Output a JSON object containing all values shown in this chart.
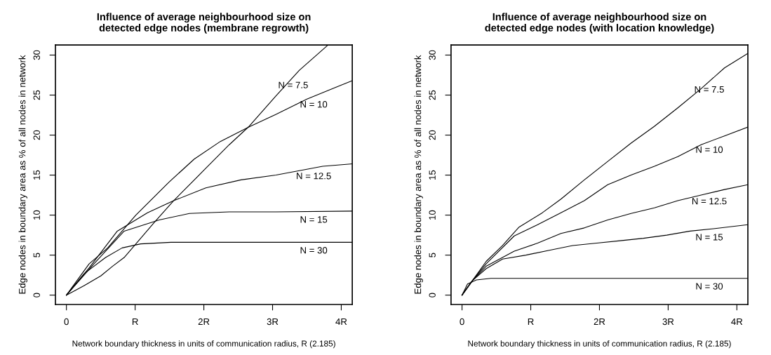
{
  "chart_data": [
    {
      "type": "line",
      "title": "Influence of average neighbourhood size on\ndetected edge nodes (membrane regrowth)",
      "xlabel": "Network boundary thickness in units of communication radius, R (2.185)",
      "ylabel": "Edge nodes in boundary area as % of all nodes in network",
      "xlim": [
        -0.16,
        4.16
      ],
      "ylim": [
        -1.17,
        31.26
      ],
      "xticks": [
        {
          "value": 0,
          "label": "0"
        },
        {
          "value": 1,
          "label": "R"
        },
        {
          "value": 2,
          "label": "2R"
        },
        {
          "value": 3,
          "label": "3R"
        },
        {
          "value": 4,
          "label": "4R"
        }
      ],
      "yticks": [
        0,
        5,
        10,
        15,
        20,
        25,
        30
      ],
      "grid": false,
      "legend": false,
      "marker": "none",
      "line_style": "solid",
      "series": [
        {
          "name": "N = 7.5",
          "color": "#000000",
          "x": [
            0,
            0.26,
            0.5,
            0.67,
            0.84,
            1.28,
            1.56,
            2.0,
            2.37,
            2.66,
            3.05,
            3.39,
            3.8
          ],
          "values": [
            0,
            1.2,
            2.4,
            3.6,
            4.7,
            9.1,
            11.8,
            15.6,
            18.8,
            21.1,
            24.9,
            28.1,
            31.2
          ]
        },
        {
          "name": "N = 10",
          "color": "#000000",
          "x": [
            0,
            0.33,
            0.6,
            1.01,
            1.49,
            1.86,
            2.24,
            2.65,
            3.05,
            3.5,
            3.9,
            4.16
          ],
          "values": [
            0,
            3.9,
            5.9,
            10.0,
            14.1,
            17.0,
            19.2,
            21.0,
            22.6,
            24.5,
            25.9,
            26.8
          ]
        },
        {
          "name": "N = 12.5",
          "color": "#000000",
          "x": [
            0,
            0.33,
            0.74,
            1.18,
            1.56,
            2.03,
            2.54,
            3.05,
            3.73,
            4.16
          ],
          "values": [
            0,
            3.4,
            8.0,
            10.3,
            11.8,
            13.4,
            14.4,
            15.0,
            16.1,
            16.4
          ]
        },
        {
          "name": "N = 15",
          "color": "#000000",
          "x": [
            0,
            0.4,
            0.84,
            1.35,
            1.79,
            2.37,
            3.05,
            4.16
          ],
          "values": [
            0,
            3.9,
            8.0,
            9.4,
            10.2,
            10.4,
            10.4,
            10.5
          ]
        },
        {
          "name": "N = 30",
          "color": "#000000",
          "x": [
            0,
            0.26,
            0.57,
            0.81,
            1.08,
            1.52,
            2.37,
            4.16
          ],
          "values": [
            0,
            2.7,
            4.7,
            5.9,
            6.4,
            6.6,
            6.6,
            6.6
          ]
        }
      ]
    },
    {
      "type": "line",
      "title": "Influence of average neighbourhood size on\ndetected edge nodes (with location knowledge)",
      "xlabel": "Network boundary thickness in units of communication radius, R (2.185)",
      "ylabel": "Edge nodes in boundary area as % of all nodes in network",
      "xlim": [
        -0.16,
        4.16
      ],
      "ylim": [
        -1.17,
        31.26
      ],
      "xticks": [
        {
          "value": 0,
          "label": "0"
        },
        {
          "value": 1,
          "label": "R"
        },
        {
          "value": 2,
          "label": "2R"
        },
        {
          "value": 3,
          "label": "3R"
        },
        {
          "value": 4,
          "label": "4R"
        }
      ],
      "yticks": [
        0,
        5,
        10,
        15,
        20,
        25,
        30
      ],
      "grid": false,
      "legend": false,
      "marker": "none",
      "line_style": "solid",
      "series": [
        {
          "name": "N = 7.5",
          "color": "#000000",
          "x": [
            0,
            0.15,
            0.35,
            0.59,
            0.83,
            1.17,
            1.44,
            1.78,
            2.12,
            2.46,
            2.8,
            3.14,
            3.48,
            3.82,
            4.157
          ],
          "values": [
            0,
            1.8,
            4.2,
            6.2,
            8.5,
            10.3,
            12.0,
            14.4,
            16.7,
            19.0,
            21.1,
            23.4,
            25.8,
            28.4,
            30.2
          ]
        },
        {
          "name": "N = 10",
          "color": "#000000",
          "x": [
            0,
            0.15,
            0.35,
            0.76,
            1.1,
            1.44,
            1.78,
            2.12,
            2.46,
            2.8,
            3.14,
            3.48,
            3.82,
            4.157
          ],
          "values": [
            0,
            1.8,
            3.9,
            7.4,
            8.8,
            10.3,
            11.8,
            13.8,
            15.0,
            16.1,
            17.3,
            18.8,
            19.9,
            21.0
          ]
        },
        {
          "name": "N = 12.5",
          "color": "#000000",
          "x": [
            0,
            0.15,
            0.35,
            0.76,
            1.1,
            1.44,
            1.78,
            2.12,
            2.46,
            2.8,
            3.14,
            3.48,
            3.82,
            4.157
          ],
          "values": [
            0,
            1.8,
            3.6,
            5.5,
            6.5,
            7.7,
            8.4,
            9.4,
            10.2,
            10.9,
            11.8,
            12.5,
            13.2,
            13.8
          ]
        },
        {
          "name": "N = 15",
          "color": "#000000",
          "x": [
            0,
            0.15,
            0.35,
            0.59,
            0.93,
            1.27,
            1.61,
            1.96,
            2.3,
            2.64,
            2.98,
            3.32,
            3.66,
            4.157
          ],
          "values": [
            0,
            1.8,
            3.3,
            4.5,
            5.0,
            5.6,
            6.2,
            6.5,
            6.8,
            7.1,
            7.5,
            8.0,
            8.3,
            8.8
          ]
        },
        {
          "name": "N = 30",
          "color": "#000000",
          "x": [
            0,
            0.08,
            0.21,
            0.42,
            0.76,
            4.157
          ],
          "values": [
            0,
            1.4,
            1.9,
            2.1,
            2.1,
            2.1
          ]
        }
      ]
    }
  ]
}
